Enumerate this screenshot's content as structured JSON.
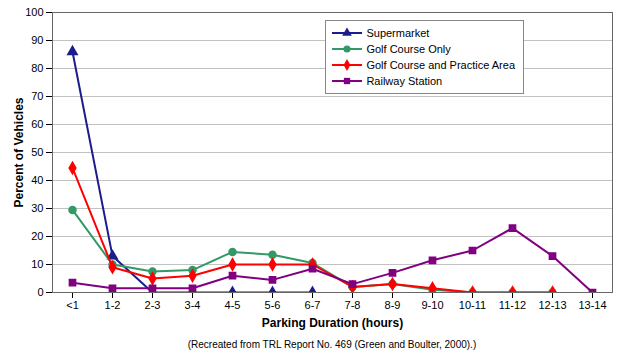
{
  "chart_data": {
    "type": "line",
    "x_label": "Parking Duration (hours)",
    "y_label": "Percent of Vehicles",
    "caption": "(Recreated from TRL Report No. 469 (Green and Boulter, 2000).)",
    "categories": [
      "<1",
      "1-2",
      "2-3",
      "3-4",
      "4-5",
      "5-6",
      "6-7",
      "7-8",
      "8-9",
      "9-10",
      "10-11",
      "11-12",
      "12-13",
      "13-14"
    ],
    "series": [
      {
        "name": "Supermarket",
        "color": "#1c1c8c",
        "marker": "triangle",
        "values": [
          86,
          13,
          0,
          0,
          0,
          0,
          0,
          null,
          null,
          null,
          null,
          null,
          null,
          null
        ]
      },
      {
        "name": "Golf Course Only",
        "color": "#339966",
        "marker": "circle",
        "values": [
          29.5,
          10,
          7.5,
          8,
          14.5,
          13.5,
          10.5,
          2,
          3,
          1,
          0,
          0,
          0,
          null
        ]
      },
      {
        "name": "Golf Course and Practice Area",
        "color": "#ff0000",
        "marker": "diamond",
        "values": [
          44.5,
          9,
          5,
          6,
          10,
          10,
          10,
          2,
          3,
          1.5,
          0,
          0,
          0,
          null
        ]
      },
      {
        "name": "Railway Station",
        "color": "#800080",
        "marker": "square",
        "values": [
          3.5,
          1.5,
          1.5,
          1.5,
          6,
          4.5,
          8.5,
          3,
          7,
          11.5,
          15,
          23,
          13,
          0
        ]
      }
    ],
    "ylim": [
      0,
      100
    ],
    "yticks": [
      0,
      10,
      20,
      30,
      40,
      50,
      60,
      70,
      80,
      90,
      100
    ],
    "grid": true,
    "legend": "top-right"
  }
}
